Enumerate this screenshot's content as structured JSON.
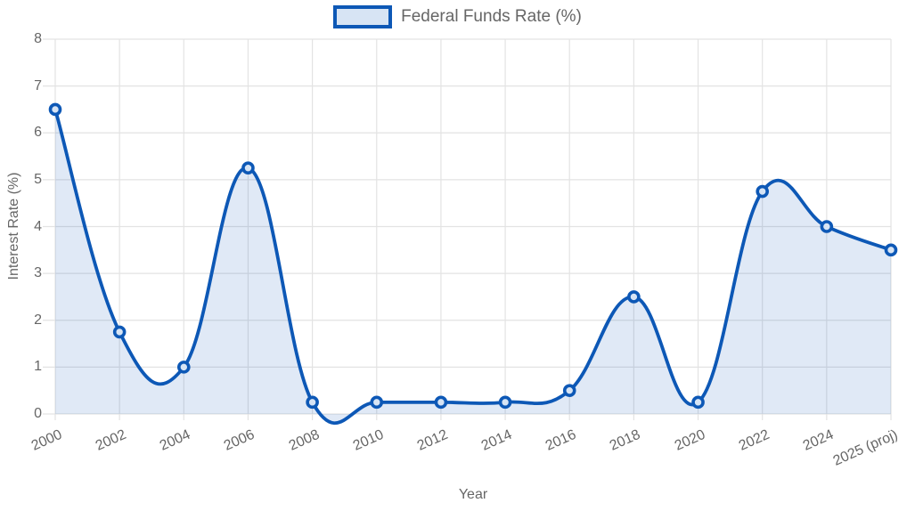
{
  "chart_data": {
    "type": "area",
    "categories": [
      "2000",
      "2002",
      "2004",
      "2006",
      "2008",
      "2010",
      "2012",
      "2014",
      "2016",
      "2018",
      "2020",
      "2022",
      "2024",
      "2025 (proj)"
    ],
    "series": [
      {
        "name": "Federal Funds Rate (%)",
        "values": [
          6.5,
          1.75,
          1.0,
          5.25,
          0.25,
          0.25,
          0.25,
          0.25,
          0.5,
          2.5,
          0.25,
          4.75,
          4.0,
          3.5
        ]
      }
    ],
    "xlabel": "Year",
    "ylabel": "Interest Rate (%)",
    "ylim": [
      0,
      8
    ],
    "yticks": [
      0,
      1,
      2,
      3,
      4,
      5,
      6,
      7,
      8
    ],
    "grid": true,
    "legend_position": "top",
    "line_tension": 0.4,
    "colors": {
      "line": "#0d58b6",
      "fill": "rgba(13, 88, 182, 0.13)",
      "marker_fill": "#d7e4f4",
      "grid": "#e3e3e3",
      "text": "#666666"
    }
  }
}
